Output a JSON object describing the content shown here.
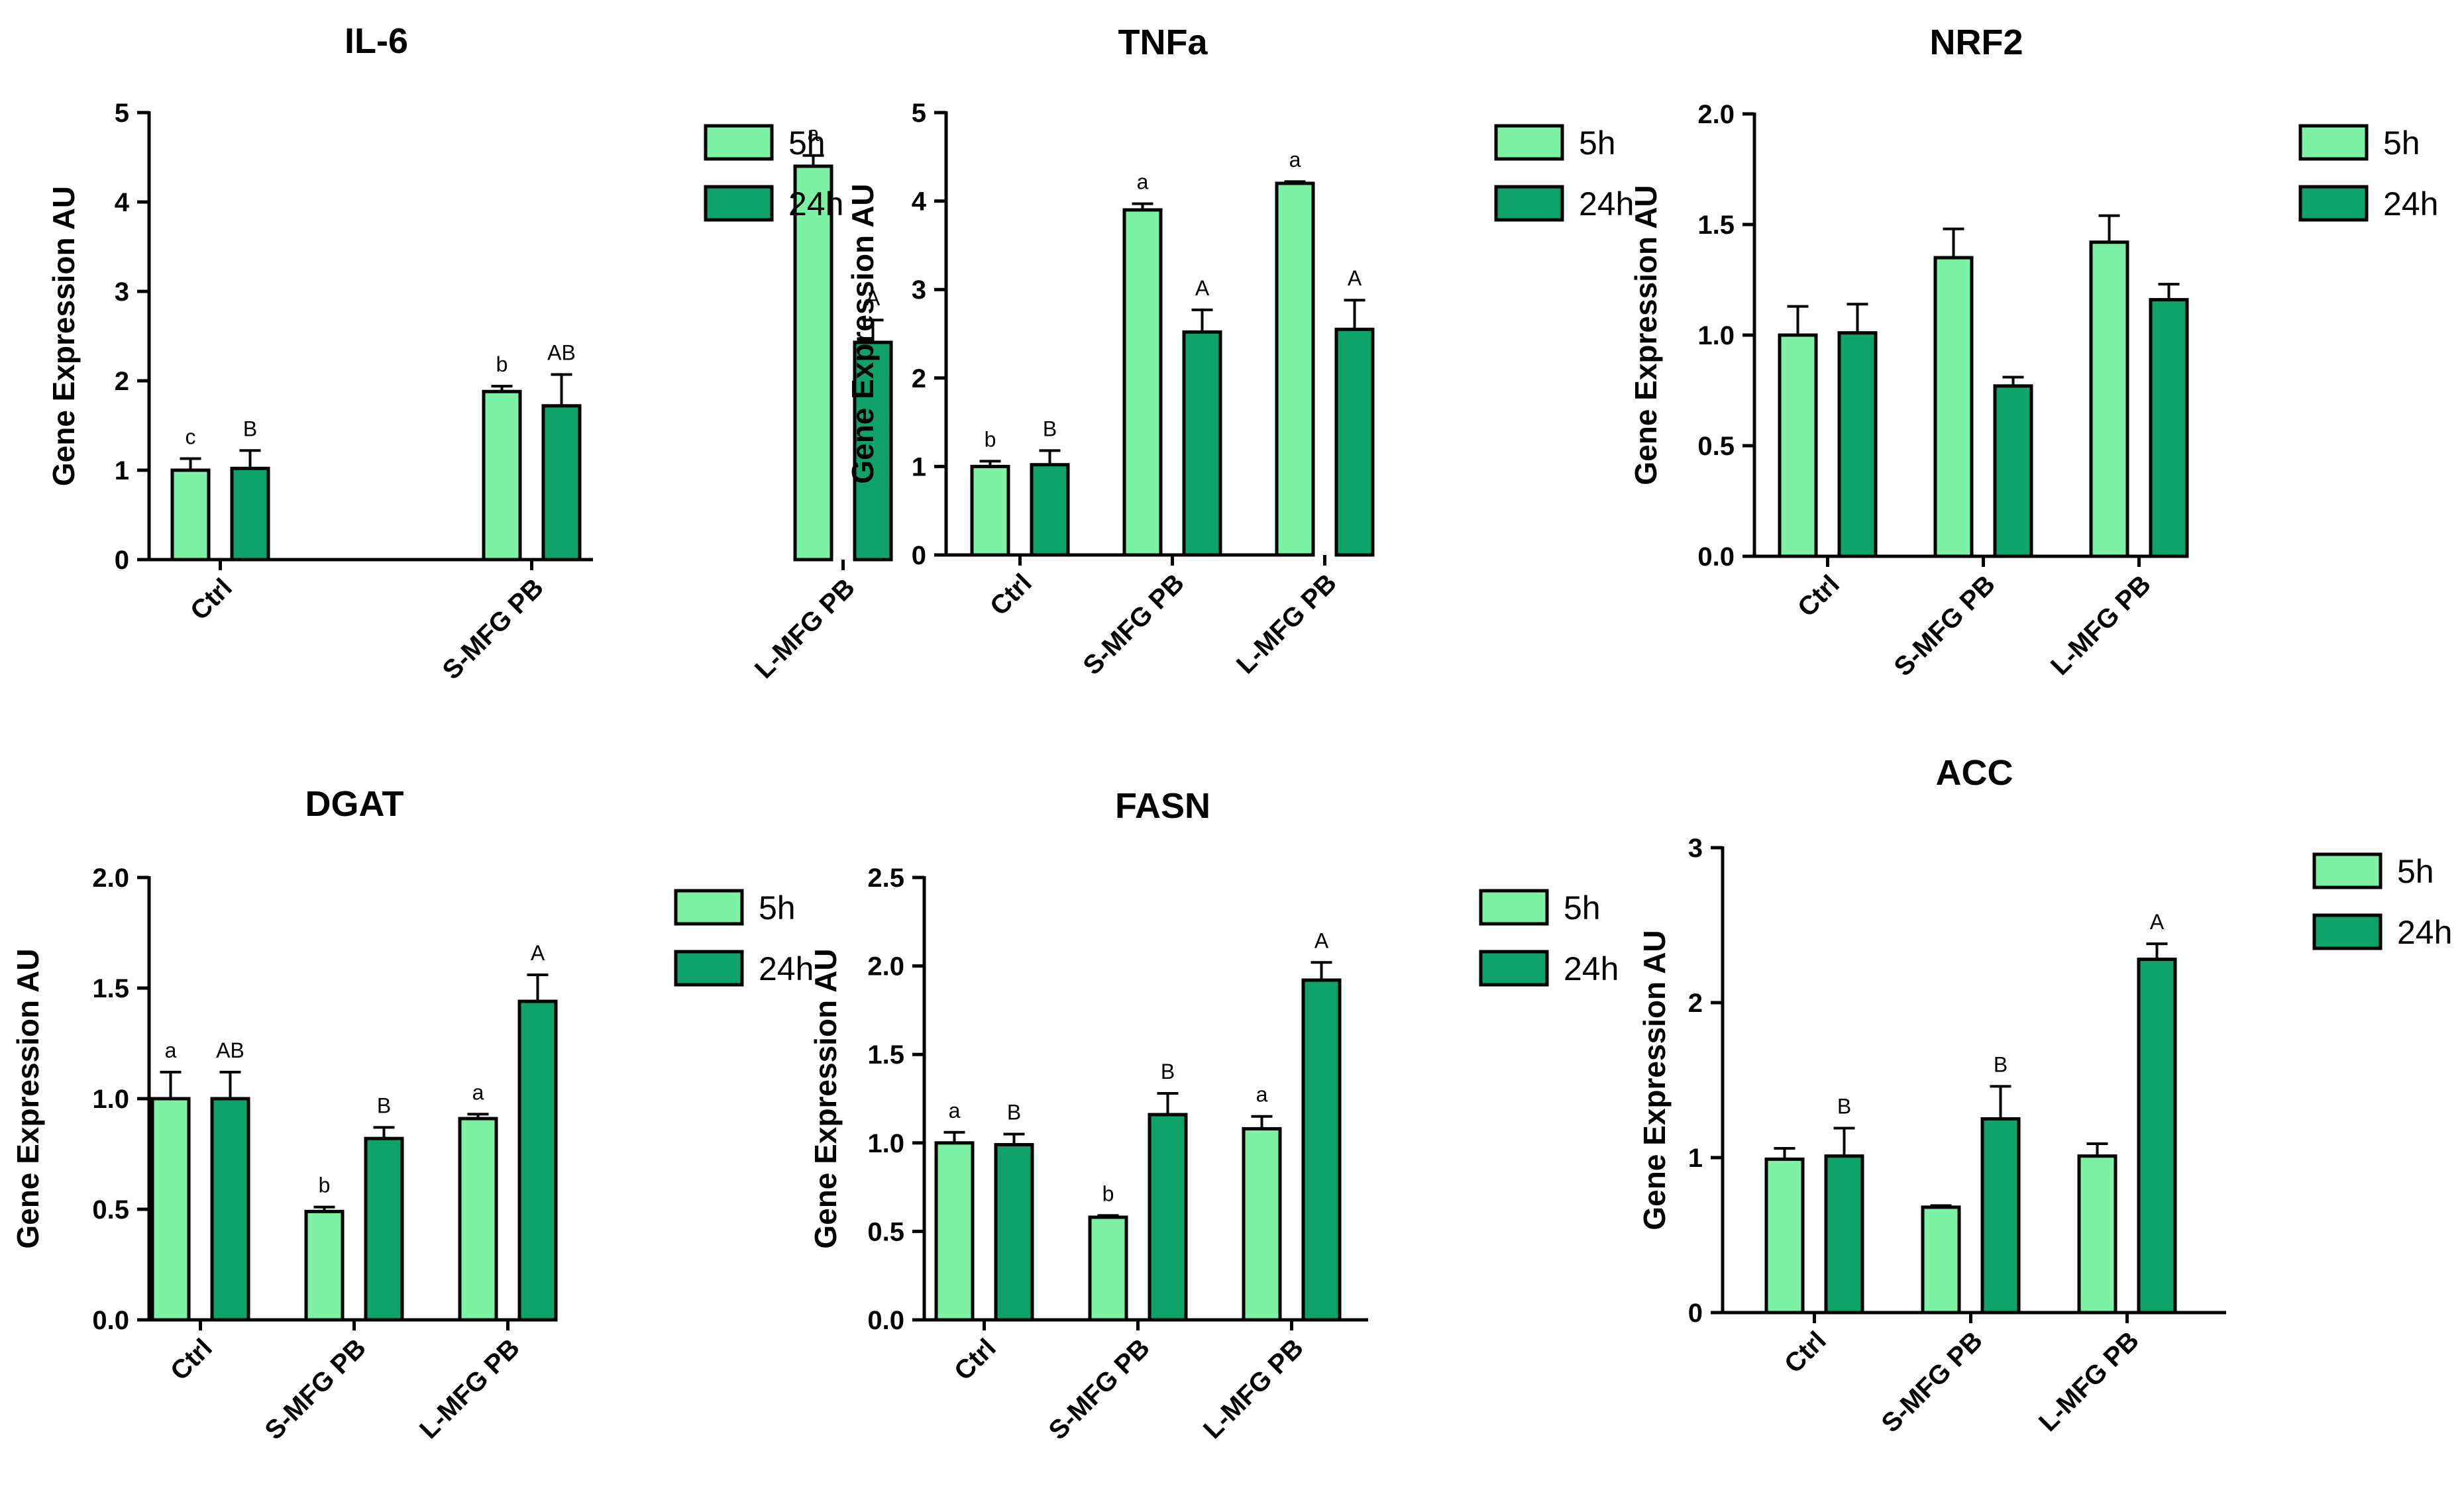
{
  "colors": {
    "s5h": "#7ef2a4",
    "s24h": "#0fa36a",
    "axis": "#000000"
  },
  "chart_data": [
    {
      "type": "bar",
      "title": "IL-6",
      "ylabel": "Gene Expression AU",
      "xlabel": "",
      "categories": [
        "Ctrl",
        "S-MFG PB",
        "L-MFG PB"
      ],
      "ylim": [
        0,
        5
      ],
      "yticks": [
        "0",
        "1",
        "2",
        "3",
        "4",
        "5"
      ],
      "legend": [
        "5h",
        "24h"
      ],
      "series": [
        {
          "name": "5h",
          "values": [
            1.0,
            1.88,
            4.4
          ],
          "errors": [
            0.13,
            0.06,
            0.12
          ],
          "labels": [
            "c",
            "b",
            "a"
          ]
        },
        {
          "name": "24h",
          "values": [
            1.02,
            1.72,
            2.43
          ],
          "errors": [
            0.2,
            0.35,
            0.25
          ],
          "labels": [
            "B",
            "AB",
            "A"
          ]
        }
      ]
    },
    {
      "type": "bar",
      "title": "TNFa",
      "ylabel": "Gene Expression AU",
      "xlabel": "",
      "categories": [
        "Ctrl",
        "S-MFG PB",
        "L-MFG PB"
      ],
      "ylim": [
        0,
        5
      ],
      "yticks": [
        "0",
        "1",
        "2",
        "3",
        "4",
        "5"
      ],
      "legend": [
        "5h",
        "24h"
      ],
      "series": [
        {
          "name": "5h",
          "values": [
            1.0,
            3.9,
            4.2
          ],
          "errors": [
            0.06,
            0.07,
            0.02
          ],
          "labels": [
            "b",
            "a",
            "a"
          ]
        },
        {
          "name": "24h",
          "values": [
            1.02,
            2.52,
            2.55
          ],
          "errors": [
            0.16,
            0.25,
            0.33
          ],
          "labels": [
            "B",
            "A",
            "A"
          ]
        }
      ]
    },
    {
      "type": "bar",
      "title": "NRF2",
      "ylabel": "Gene Expression AU",
      "xlabel": "",
      "categories": [
        "Ctrl",
        "S-MFG PB",
        "L-MFG PB"
      ],
      "ylim": [
        0,
        2.0
      ],
      "yticks": [
        "0.0",
        "0.5",
        "1.0",
        "1.5",
        "2.0"
      ],
      "legend": [
        "5h",
        "24h"
      ],
      "series": [
        {
          "name": "5h",
          "values": [
            1.0,
            1.35,
            1.42
          ],
          "errors": [
            0.13,
            0.13,
            0.12
          ],
          "labels": [
            "",
            "",
            ""
          ]
        },
        {
          "name": "24h",
          "values": [
            1.01,
            0.77,
            1.16
          ],
          "errors": [
            0.13,
            0.04,
            0.07
          ],
          "labels": [
            "",
            "",
            ""
          ]
        }
      ]
    },
    {
      "type": "bar",
      "title": "DGAT",
      "ylabel": "Gene Expression AU",
      "xlabel": "",
      "categories": [
        "Ctrl",
        "S-MFG PB",
        "L-MFG PB"
      ],
      "ylim": [
        0,
        2.0
      ],
      "yticks": [
        "0.0",
        "0.5",
        "1.0",
        "1.5",
        "2.0"
      ],
      "legend": [
        "5h",
        "24h"
      ],
      "series": [
        {
          "name": "5h",
          "values": [
            1.0,
            0.49,
            0.91
          ],
          "errors": [
            0.12,
            0.02,
            0.02
          ],
          "labels": [
            "a",
            "b",
            "a"
          ]
        },
        {
          "name": "24h",
          "values": [
            1.0,
            0.82,
            1.44
          ],
          "errors": [
            0.12,
            0.05,
            0.12
          ],
          "labels": [
            "AB",
            "B",
            "A"
          ]
        }
      ]
    },
    {
      "type": "bar",
      "title": "FASN",
      "ylabel": "Gene Expression AU",
      "xlabel": "",
      "categories": [
        "Ctrl",
        "S-MFG PB",
        "L-MFG PB"
      ],
      "ylim": [
        0,
        2.5
      ],
      "yticks": [
        "0.0",
        "0.5",
        "1.0",
        "1.5",
        "2.0",
        "2.5"
      ],
      "legend": [
        "5h",
        "24h"
      ],
      "series": [
        {
          "name": "5h",
          "values": [
            1.0,
            0.58,
            1.08
          ],
          "errors": [
            0.06,
            0.01,
            0.07
          ],
          "labels": [
            "a",
            "b",
            "a"
          ]
        },
        {
          "name": "24h",
          "values": [
            0.99,
            1.16,
            1.92
          ],
          "errors": [
            0.06,
            0.12,
            0.1
          ],
          "labels": [
            "B",
            "B",
            "A"
          ]
        }
      ]
    },
    {
      "type": "bar",
      "title": "ACC",
      "ylabel": "Gene Expression AU",
      "xlabel": "",
      "categories": [
        "Ctrl",
        "S-MFG PB",
        "L-MFG PB"
      ],
      "ylim": [
        0,
        3
      ],
      "yticks": [
        "0",
        "1",
        "2",
        "3"
      ],
      "legend": [
        "5h",
        "24h"
      ],
      "series": [
        {
          "name": "5h",
          "values": [
            0.99,
            0.68,
            1.01
          ],
          "errors": [
            0.07,
            0.01,
            0.08
          ],
          "labels": [
            "",
            "",
            ""
          ]
        },
        {
          "name": "24h",
          "values": [
            1.01,
            1.25,
            2.28
          ],
          "errors": [
            0.18,
            0.21,
            0.1
          ],
          "labels": [
            "B",
            "B",
            "A"
          ]
        }
      ]
    }
  ]
}
